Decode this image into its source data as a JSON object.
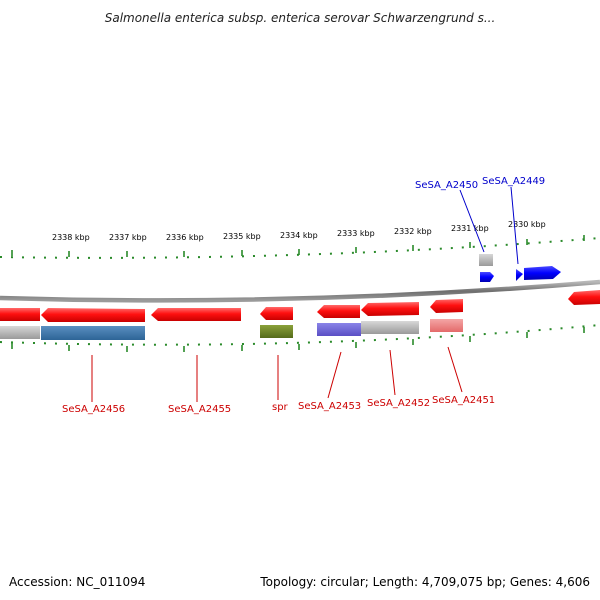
{
  "title": "Salmonella enterica subsp. enterica serovar Schwarzengrund s...",
  "footer": {
    "accession": "Accession: NC_011094",
    "summary": "Topology: circular; Length: 4,709,075 bp; Genes: 4,606"
  },
  "colors": {
    "forward_gene": "#0000ee",
    "reverse_gene": "#ee0000",
    "label_forward": "#0000cc",
    "label_reverse": "#cc0000",
    "tick": "#2a8a2a",
    "backbone": "#888888"
  },
  "scale_labels": [
    "2338 kbp",
    "2337 kbp",
    "2336 kbp",
    "2335 kbp",
    "2334 kbp",
    "2333 kbp",
    "2332 kbp",
    "2331 kbp",
    "2330 kbp"
  ],
  "gene_labels": {
    "top": [
      "SeSA_A2450",
      "SeSA_A2449"
    ],
    "bottom": [
      "SeSA_A2456",
      "SeSA_A2455",
      "spr",
      "SeSA_A2453",
      "SeSA_A2452",
      "SeSA_A2451"
    ]
  }
}
